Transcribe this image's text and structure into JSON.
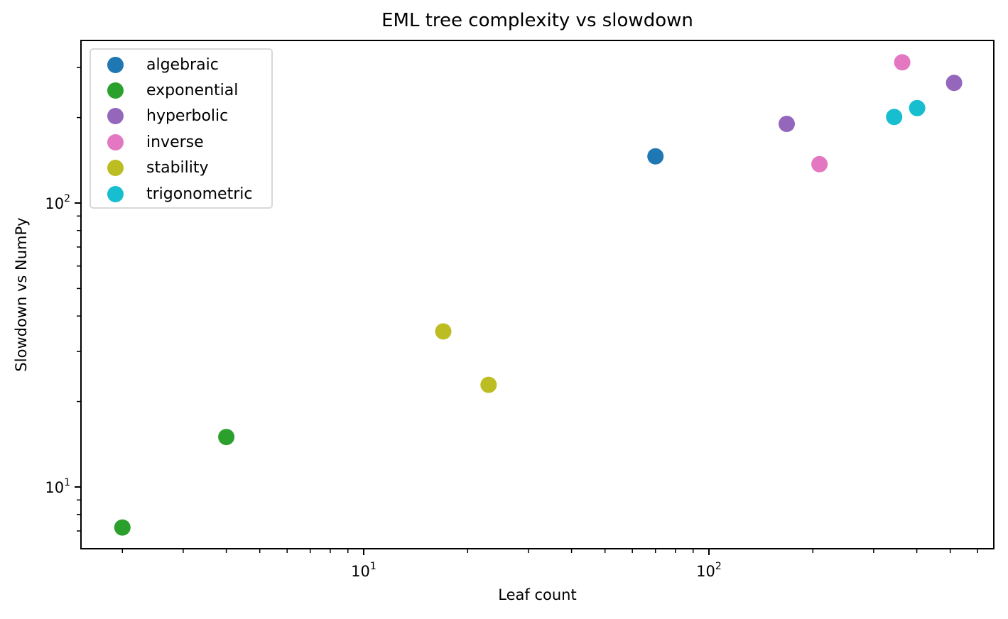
{
  "chart_data": {
    "type": "scatter",
    "title": "EML tree complexity vs slowdown",
    "xlabel": "Leaf count",
    "ylabel": "Slowdown vs NumPy",
    "xscale": "log",
    "yscale": "log",
    "xlim": [
      1.6,
      620
    ],
    "ylim": [
      6.2,
      420
    ],
    "x_ticks": [
      {
        "value": 10,
        "base": "10",
        "exp": "1"
      },
      {
        "value": 100,
        "base": "10",
        "exp": "2"
      }
    ],
    "y_ticks": [
      {
        "value": 10,
        "base": "10",
        "exp": "1"
      },
      {
        "value": 100,
        "base": "10",
        "exp": "2"
      }
    ],
    "grid": false,
    "legend_position": "upper left",
    "series": [
      {
        "name": "algebraic",
        "color": "#1f77b4",
        "points": [
          {
            "x": 70,
            "y": 146
          }
        ]
      },
      {
        "name": "exponential",
        "color": "#2ca02c",
        "points": [
          {
            "x": 2,
            "y": 7.2
          },
          {
            "x": 4,
            "y": 15
          }
        ]
      },
      {
        "name": "hyperbolic",
        "color": "#9467bd",
        "points": [
          {
            "x": 168,
            "y": 190
          },
          {
            "x": 513,
            "y": 265
          }
        ]
      },
      {
        "name": "inverse",
        "color": "#e377c2",
        "points": [
          {
            "x": 209,
            "y": 137
          },
          {
            "x": 363,
            "y": 313
          }
        ]
      },
      {
        "name": "stability",
        "color": "#bcbd22",
        "points": [
          {
            "x": 17,
            "y": 35.3
          },
          {
            "x": 23,
            "y": 22.9
          }
        ]
      },
      {
        "name": "trigonometric",
        "color": "#17becf",
        "points": [
          {
            "x": 344,
            "y": 201
          },
          {
            "x": 401,
            "y": 216
          }
        ]
      }
    ]
  }
}
